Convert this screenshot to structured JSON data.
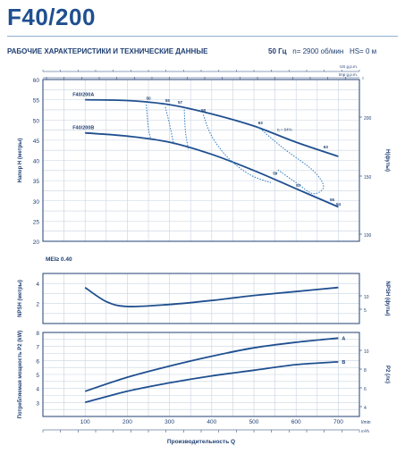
{
  "header": {
    "title": "F40/200",
    "subtitle": "РАБОЧИЕ ХАРАКТЕРИСТИКИ И ТЕХНИЧЕСКИЕ ДАННЫЕ",
    "frequency": "50 Гц",
    "speed": "n= 2900 об/мин",
    "hs": "HS= 0 м"
  },
  "colors": {
    "line": "#1f4f8f",
    "dotted": "#2e7bc0",
    "grid": "#c7d3e0",
    "frame": "#1f3f73"
  },
  "chart_data": [
    {
      "type": "line",
      "id": "head",
      "ylabel": "Напор H (метры)",
      "ylabel_right": "H(футы)",
      "ylim": [
        20,
        60
      ],
      "yticks": [
        20,
        25,
        30,
        35,
        40,
        45,
        50,
        55,
        60
      ],
      "yticks_right": [
        100,
        150,
        200
      ],
      "top_unit_labels": [
        "US g.p.m.",
        "Imp g.p.m."
      ],
      "top_ticks": [
        "",
        "",
        "",
        "",
        "",
        "",
        "",
        "",
        "",
        "",
        "",
        "",
        "",
        "",
        "",
        "",
        "",
        "",
        ""
      ],
      "series": [
        {
          "name": "F40/200A",
          "x": [
            100,
            200,
            300,
            400,
            500,
            600,
            700
          ],
          "y": [
            55.0,
            54.8,
            53.8,
            51.5,
            48.5,
            44.5,
            41.0
          ]
        },
        {
          "name": "F40/200B",
          "x": [
            100,
            200,
            300,
            400,
            500,
            600,
            700
          ],
          "y": [
            46.8,
            46.0,
            44.5,
            41.5,
            37.5,
            33.0,
            28.5
          ]
        }
      ],
      "efficiency_label": "η = 64%",
      "efficiency_marks": [
        "50",
        "55",
        "57",
        "58",
        "63",
        "63",
        "59",
        "57",
        "55",
        "54"
      ],
      "annotation": "MEI≥ 0.40"
    },
    {
      "type": "line",
      "id": "npsh",
      "ylabel": "NPSH (метры)",
      "ylabel_right": "NPSH (футы)",
      "yticks": [
        2,
        4
      ],
      "yticks_right": [
        5,
        10
      ],
      "ylim": [
        0,
        5
      ],
      "series": [
        {
          "name": "",
          "x": [
            100,
            150,
            200,
            300,
            400,
            500,
            600,
            700
          ],
          "y": [
            3.6,
            2.2,
            1.7,
            1.9,
            2.3,
            2.8,
            3.2,
            3.6
          ]
        }
      ]
    },
    {
      "type": "line",
      "id": "power",
      "ylabel": "Потребляемая мощность P2 (kW)",
      "ylabel_right": "P2 (лс)",
      "ylim": [
        2,
        8
      ],
      "yticks": [
        3,
        4,
        5,
        6,
        7,
        8
      ],
      "yticks_right": [
        4,
        6,
        8,
        10
      ],
      "xlabel": "Производительность Q",
      "xunit": "l/min",
      "xticks": [
        100,
        200,
        300,
        400,
        500,
        600,
        700
      ],
      "xlim": [
        0,
        750
      ],
      "bottom_unit_label": "m³/h",
      "series": [
        {
          "name": "A",
          "x": [
            100,
            200,
            300,
            400,
            500,
            600,
            700
          ],
          "y": [
            3.8,
            4.8,
            5.6,
            6.3,
            6.9,
            7.3,
            7.6
          ]
        },
        {
          "name": "B",
          "x": [
            100,
            200,
            300,
            400,
            500,
            600,
            700
          ],
          "y": [
            3.0,
            3.8,
            4.4,
            4.9,
            5.3,
            5.7,
            5.9
          ]
        }
      ]
    }
  ]
}
